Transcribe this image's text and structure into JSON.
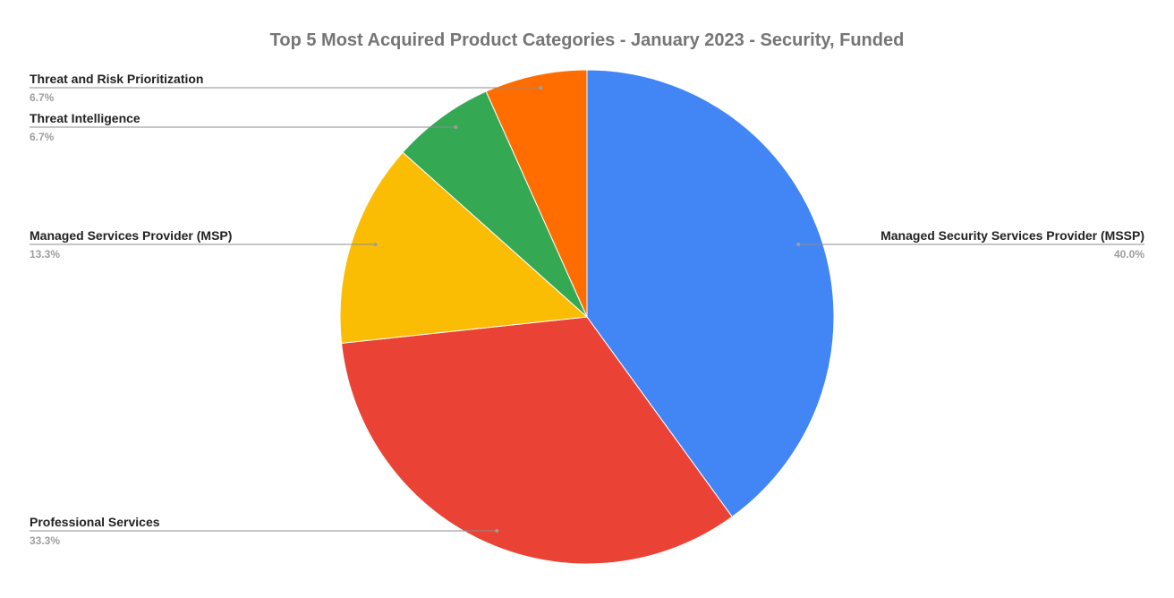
{
  "chart_data": {
    "type": "pie",
    "title": "Top 5 Most Acquired Product Categories - January 2023 - Security, Funded",
    "slices": [
      {
        "label": "Managed Security Services Provider (MSSP)",
        "value": 40.0,
        "percent_label": "40.0%",
        "color": "#4285f4",
        "icon": "",
        "side": "right"
      },
      {
        "label": "Professional Services",
        "value": 33.3,
        "percent_label": "33.3%",
        "color": "#ea4335",
        "side": "left"
      },
      {
        "label": "Managed Services Provider (MSP)",
        "value": 13.3,
        "percent_label": "13.3%",
        "color": "#fbbc04",
        "side": "left"
      },
      {
        "label": "Threat Intelligence",
        "value": 6.7,
        "percent_label": "6.7%",
        "color": "#34a853",
        "side": "left"
      },
      {
        "label": "Threat and Risk Prioritization",
        "value": 6.7,
        "percent_label": "6.7%",
        "color": "#ff6d01",
        "side": "left"
      }
    ],
    "start_angle": "12 o'clock",
    "direction": "clockwise",
    "legend": "labels-outside-with-leader-lines"
  }
}
